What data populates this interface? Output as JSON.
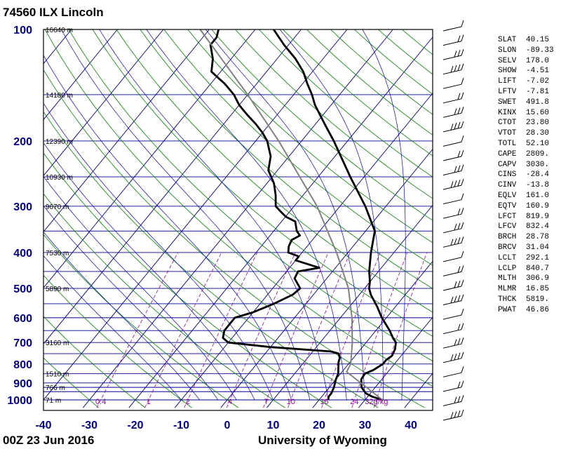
{
  "header": {
    "station": "74560 ILX Lincoln",
    "time": "00Z 23 Jun 2016",
    "credit": "University of Wyoming"
  },
  "chart_data": {
    "type": "line",
    "title": "74560 ILX Lincoln",
    "x_label": "",
    "y_label": "",
    "x_range": [
      -40,
      45
    ],
    "y_range_hpa": [
      1000,
      100
    ],
    "y_scale": "log",
    "x_ticks": [
      "-40",
      "-30",
      "-20",
      "-10",
      "0",
      "10",
      "20",
      "30",
      "40"
    ],
    "pressure_ticks": [
      "100",
      "200",
      "300",
      "400",
      "500",
      "600",
      "700",
      "800",
      "900",
      "1000"
    ],
    "height_labels": [
      {
        "p": 100,
        "label": "16640 m"
      },
      {
        "p": 150,
        "label": "14180 m"
      },
      {
        "p": 200,
        "label": "12390 m"
      },
      {
        "p": 250,
        "label": "10930 m"
      },
      {
        "p": 300,
        "label": "9670 m"
      },
      {
        "p": 400,
        "label": "7530 m"
      },
      {
        "p": 500,
        "label": "5890 m"
      },
      {
        "p": 700,
        "label": "3160 m"
      },
      {
        "p": 850,
        "label": "1510 m"
      },
      {
        "p": 925,
        "label": "766 m"
      },
      {
        "p": 1000,
        "label": "71 m"
      }
    ],
    "mixing_ratio_labels": [
      "0.4",
      "1",
      "2",
      "4",
      "7",
      "10",
      "16",
      "24",
      "32g/kg"
    ],
    "mixing_ratio_values": [
      0.4,
      1,
      2,
      4,
      7,
      10,
      16,
      24,
      32
    ],
    "series": [
      {
        "role": "temperature",
        "points": [
          [
            1000,
            33.8
          ],
          [
            980,
            31
          ],
          [
            960,
            29
          ],
          [
            925,
            27
          ],
          [
            880,
            25.5
          ],
          [
            850,
            25.3
          ],
          [
            830,
            26.5
          ],
          [
            800,
            27.5
          ],
          [
            780,
            27.5
          ],
          [
            760,
            28
          ],
          [
            730,
            27.5
          ],
          [
            700,
            26.5
          ],
          [
            680,
            25
          ],
          [
            650,
            23
          ],
          [
            600,
            19
          ],
          [
            560,
            16
          ],
          [
            520,
            12.5
          ],
          [
            500,
            11
          ],
          [
            480,
            10
          ],
          [
            450,
            8
          ],
          [
            400,
            5
          ],
          [
            350,
            2
          ],
          [
            300,
            -4.5
          ],
          [
            250,
            -13
          ],
          [
            200,
            -23
          ],
          [
            180,
            -28
          ],
          [
            160,
            -33.5
          ],
          [
            150,
            -36
          ],
          [
            140,
            -39
          ],
          [
            130,
            -42
          ],
          [
            120,
            -46
          ],
          [
            110,
            -51
          ],
          [
            100,
            -56
          ]
        ]
      },
      {
        "role": "dewpoint",
        "points": [
          [
            1000,
            22
          ],
          [
            980,
            21.5
          ],
          [
            960,
            21.5
          ],
          [
            925,
            21
          ],
          [
            880,
            20
          ],
          [
            850,
            19.5
          ],
          [
            820,
            18.5
          ],
          [
            790,
            17.5
          ],
          [
            770,
            17
          ],
          [
            750,
            16
          ],
          [
            740,
            14
          ],
          [
            720,
            0
          ],
          [
            700,
            -10
          ],
          [
            690,
            -11
          ],
          [
            680,
            -12
          ],
          [
            650,
            -13
          ],
          [
            600,
            -13
          ],
          [
            580,
            -10
          ],
          [
            550,
            -7
          ],
          [
            520,
            -4.5
          ],
          [
            500,
            -4
          ],
          [
            470,
            -7
          ],
          [
            450,
            -7.5
          ],
          [
            440,
            -3.5
          ],
          [
            420,
            -10
          ],
          [
            410,
            -10
          ],
          [
            400,
            -13
          ],
          [
            385,
            -14
          ],
          [
            370,
            -14.5
          ],
          [
            360,
            -13.5
          ],
          [
            350,
            -15
          ],
          [
            340,
            -16
          ],
          [
            330,
            -17
          ],
          [
            320,
            -20
          ],
          [
            310,
            -22
          ],
          [
            300,
            -24
          ],
          [
            280,
            -26
          ],
          [
            260,
            -28.5
          ],
          [
            240,
            -32
          ],
          [
            220,
            -34
          ],
          [
            200,
            -37.5
          ],
          [
            190,
            -40
          ],
          [
            180,
            -43
          ],
          [
            170,
            -46.5
          ],
          [
            160,
            -50
          ],
          [
            150,
            -53
          ],
          [
            140,
            -57
          ],
          [
            130,
            -62
          ],
          [
            120,
            -64
          ],
          [
            110,
            -67
          ],
          [
            105,
            -67
          ],
          [
            100,
            -68
          ]
        ]
      },
      {
        "role": "parcel",
        "points": [
          [
            1000,
            33.8
          ],
          [
            840,
            21
          ],
          [
            800,
            20.5
          ],
          [
            700,
            17
          ],
          [
            600,
            12.5
          ],
          [
            500,
            6.5
          ],
          [
            400,
            -2.5
          ],
          [
            300,
            -15
          ],
          [
            250,
            -24
          ],
          [
            200,
            -35
          ],
          [
            150,
            -50
          ],
          [
            100,
            -72
          ]
        ]
      }
    ],
    "wind_barb_count": 28
  },
  "indices": [
    {
      "key": "SLAT",
      "value": "40.15"
    },
    {
      "key": "SLON",
      "value": "-89.33"
    },
    {
      "key": "SELV",
      "value": "178.0"
    },
    {
      "key": "SHOW",
      "value": "-4.51"
    },
    {
      "key": "LIFT",
      "value": "-7.02"
    },
    {
      "key": "LFTV",
      "value": "-7.81"
    },
    {
      "key": "SWET",
      "value": "491.8"
    },
    {
      "key": "KINX",
      "value": "15.60"
    },
    {
      "key": "CTOT",
      "value": "23.80"
    },
    {
      "key": "VTOT",
      "value": "28.30"
    },
    {
      "key": "TOTL",
      "value": "52.10"
    },
    {
      "key": "CAPE",
      "value": "2809."
    },
    {
      "key": "CAPV",
      "value": "3030."
    },
    {
      "key": "CINS",
      "value": "-28.4"
    },
    {
      "key": "CINV",
      "value": "-13.8"
    },
    {
      "key": "EQLV",
      "value": "161.0"
    },
    {
      "key": "EQTV",
      "value": "160.9"
    },
    {
      "key": "LFCT",
      "value": "819.9"
    },
    {
      "key": "LFCV",
      "value": "832.4"
    },
    {
      "key": "BRCH",
      "value": "28.78"
    },
    {
      "key": "BRCV",
      "value": "31.04"
    },
    {
      "key": "LCLT",
      "value": "292.1"
    },
    {
      "key": "LCLP",
      "value": "840.7"
    },
    {
      "key": "MLTH",
      "value": "306.9"
    },
    {
      "key": "MLMR",
      "value": "16.85"
    },
    {
      "key": "THCK",
      "value": "5819."
    },
    {
      "key": "PWAT",
      "value": "46.86"
    }
  ],
  "colors": {
    "isobar_isotherm": "#00008b",
    "dry_adiabat": "#008000",
    "moist_adiabat": "#0000cd",
    "mixing_ratio": "#a000a0",
    "sounding": "#000000",
    "parcel": "#808080",
    "axis_labels": "#00008b"
  }
}
